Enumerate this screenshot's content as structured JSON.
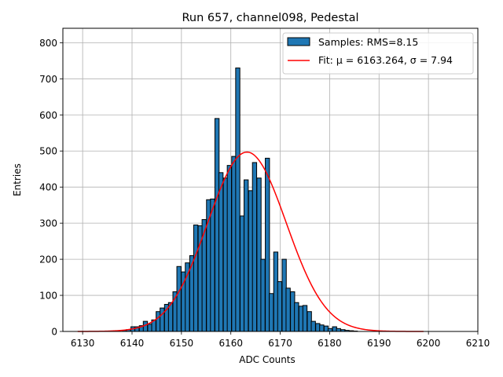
{
  "chart_data": {
    "type": "bar",
    "title": "Run 657, channel098, Pedestal",
    "xlabel": "ADC Counts",
    "ylabel": "Entries",
    "xlim": [
      6126,
      6210
    ],
    "ylim": [
      0,
      840
    ],
    "xticks": [
      6130,
      6140,
      6150,
      6160,
      6170,
      6180,
      6190,
      6200,
      6210
    ],
    "yticks": [
      0,
      100,
      200,
      300,
      400,
      500,
      600,
      700,
      800
    ],
    "grid": true,
    "legend_position": "top-right",
    "bin_width": 0.85,
    "bins": [
      {
        "x": 6138.5,
        "y": 3
      },
      {
        "x": 6139.3,
        "y": 5
      },
      {
        "x": 6140.2,
        "y": 13
      },
      {
        "x": 6141.0,
        "y": 13
      },
      {
        "x": 6141.9,
        "y": 16
      },
      {
        "x": 6142.7,
        "y": 28
      },
      {
        "x": 6143.6,
        "y": 20
      },
      {
        "x": 6144.4,
        "y": 32
      },
      {
        "x": 6145.3,
        "y": 55
      },
      {
        "x": 6146.1,
        "y": 65
      },
      {
        "x": 6147.0,
        "y": 75
      },
      {
        "x": 6147.8,
        "y": 80
      },
      {
        "x": 6148.7,
        "y": 110
      },
      {
        "x": 6149.5,
        "y": 180
      },
      {
        "x": 6150.4,
        "y": 165
      },
      {
        "x": 6151.2,
        "y": 190
      },
      {
        "x": 6152.1,
        "y": 210
      },
      {
        "x": 6152.9,
        "y": 295
      },
      {
        "x": 6153.8,
        "y": 293
      },
      {
        "x": 6154.6,
        "y": 310
      },
      {
        "x": 6155.5,
        "y": 365
      },
      {
        "x": 6156.3,
        "y": 367
      },
      {
        "x": 6157.2,
        "y": 590
      },
      {
        "x": 6158.0,
        "y": 440
      },
      {
        "x": 6158.9,
        "y": 425
      },
      {
        "x": 6159.7,
        "y": 460
      },
      {
        "x": 6160.6,
        "y": 485
      },
      {
        "x": 6161.4,
        "y": 730
      },
      {
        "x": 6162.3,
        "y": 320
      },
      {
        "x": 6163.1,
        "y": 420
      },
      {
        "x": 6164.0,
        "y": 390
      },
      {
        "x": 6164.8,
        "y": 468
      },
      {
        "x": 6165.7,
        "y": 425
      },
      {
        "x": 6166.5,
        "y": 200
      },
      {
        "x": 6167.4,
        "y": 480
      },
      {
        "x": 6168.2,
        "y": 105
      },
      {
        "x": 6169.1,
        "y": 220
      },
      {
        "x": 6169.9,
        "y": 138
      },
      {
        "x": 6170.8,
        "y": 200
      },
      {
        "x": 6171.6,
        "y": 120
      },
      {
        "x": 6172.5,
        "y": 110
      },
      {
        "x": 6173.3,
        "y": 80
      },
      {
        "x": 6174.2,
        "y": 70
      },
      {
        "x": 6175.0,
        "y": 72
      },
      {
        "x": 6175.9,
        "y": 55
      },
      {
        "x": 6176.7,
        "y": 28
      },
      {
        "x": 6177.6,
        "y": 22
      },
      {
        "x": 6178.4,
        "y": 18
      },
      {
        "x": 6179.3,
        "y": 15
      },
      {
        "x": 6180.1,
        "y": 8
      },
      {
        "x": 6181.0,
        "y": 13
      },
      {
        "x": 6181.8,
        "y": 8
      },
      {
        "x": 6182.7,
        "y": 5
      },
      {
        "x": 6183.5,
        "y": 3
      },
      {
        "x": 6184.4,
        "y": 2
      },
      {
        "x": 6185.2,
        "y": 1
      }
    ],
    "series": [
      {
        "name": "Samples: RMS=8.15",
        "kind": "histogram",
        "color": "#1f77b4",
        "edgecolor": "#000000"
      },
      {
        "name": "Fit: μ = 6163.264, σ = 7.94",
        "kind": "gaussian_fit",
        "color": "#ff0000",
        "mu": 6163.264,
        "sigma": 7.94,
        "amplitude": 497,
        "x_range": [
          6129,
          6199
        ]
      }
    ]
  }
}
